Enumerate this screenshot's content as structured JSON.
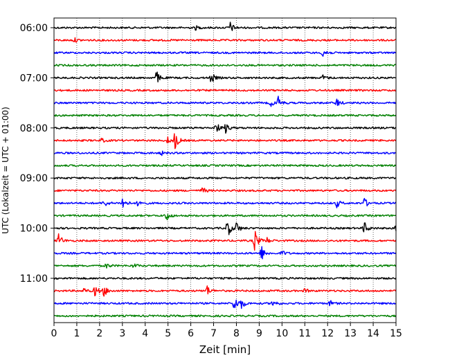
{
  "chart_data": {
    "type": "line",
    "title": "",
    "xlabel": "Zeit  [min]",
    "ylabel": "UTC (Lokalzeit = UTC + 01:00)",
    "xlim": [
      0,
      15
    ],
    "x_ticks": [
      0,
      1,
      2,
      3,
      4,
      5,
      6,
      7,
      8,
      9,
      10,
      11,
      12,
      13,
      14,
      15
    ],
    "x_tick_labels": [
      "0",
      "1",
      "2",
      "3",
      "4",
      "5",
      "6",
      "7",
      "8",
      "9",
      "10",
      "11",
      "12",
      "13",
      "14",
      "15"
    ],
    "y_tick_labels": [
      "06:00",
      "07:00",
      "08:00",
      "09:00",
      "10:00",
      "11:00"
    ],
    "y_tick_traces": [
      0,
      4,
      8,
      12,
      16,
      20
    ],
    "grid": "vertical-dotted",
    "trace_interval_minutes": 15,
    "color_cycle": [
      "#000000",
      "#ff0000",
      "#0000ff",
      "#008000"
    ],
    "traces": [
      {
        "start": "06:00",
        "events": [
          {
            "t": 7.7,
            "amp": 1.0
          },
          {
            "t": 6.2,
            "amp": 0.3
          }
        ]
      },
      {
        "start": "06:15",
        "events": [
          {
            "t": 0.9,
            "amp": 0.3
          }
        ]
      },
      {
        "start": "06:30",
        "events": [
          {
            "t": 11.8,
            "amp": 1.1
          }
        ]
      },
      {
        "start": "06:45",
        "events": []
      },
      {
        "start": "07:00",
        "events": [
          {
            "t": 4.5,
            "amp": 1.0
          },
          {
            "t": 6.9,
            "amp": 0.8
          },
          {
            "t": 11.8,
            "amp": 0.4
          }
        ]
      },
      {
        "start": "07:15",
        "events": []
      },
      {
        "start": "07:30",
        "events": [
          {
            "t": 9.8,
            "amp": 1.1
          },
          {
            "t": 9.5,
            "amp": 0.5
          },
          {
            "t": 12.4,
            "amp": 0.6
          }
        ]
      },
      {
        "start": "07:45",
        "events": []
      },
      {
        "start": "08:00",
        "events": [
          {
            "t": 7.1,
            "amp": 0.9
          },
          {
            "t": 7.5,
            "amp": 0.8
          }
        ]
      },
      {
        "start": "08:15",
        "events": [
          {
            "t": 5.3,
            "amp": 1.4
          },
          {
            "t": 5.0,
            "amp": 0.5
          },
          {
            "t": 2.1,
            "amp": 0.3
          }
        ]
      },
      {
        "start": "08:30",
        "events": [
          {
            "t": 4.7,
            "amp": 0.3
          }
        ]
      },
      {
        "start": "08:45",
        "events": []
      },
      {
        "start": "09:00",
        "events": []
      },
      {
        "start": "09:15",
        "events": [
          {
            "t": 6.5,
            "amp": 0.5
          }
        ]
      },
      {
        "start": "09:30",
        "events": [
          {
            "t": 3.0,
            "amp": 1.0
          },
          {
            "t": 2.2,
            "amp": 0.6
          },
          {
            "t": 3.7,
            "amp": 0.6
          },
          {
            "t": 12.4,
            "amp": 0.6
          },
          {
            "t": 13.6,
            "amp": 0.8
          }
        ]
      },
      {
        "start": "09:45",
        "events": [
          {
            "t": 4.9,
            "amp": 0.9
          }
        ]
      },
      {
        "start": "10:00",
        "events": [
          {
            "t": 7.6,
            "amp": 1.5
          },
          {
            "t": 8.0,
            "amp": 0.9
          },
          {
            "t": 13.6,
            "amp": 1.0
          },
          {
            "t": 15.0,
            "amp": 0.6
          }
        ]
      },
      {
        "start": "10:15",
        "events": [
          {
            "t": 0.2,
            "amp": 1.1
          },
          {
            "t": 8.8,
            "amp": 1.7
          },
          {
            "t": 9.3,
            "amp": 0.6
          }
        ]
      },
      {
        "start": "10:30",
        "events": [
          {
            "t": 9.1,
            "amp": 1.1
          },
          {
            "t": 10.0,
            "amp": 0.4
          }
        ]
      },
      {
        "start": "10:45",
        "events": [
          {
            "t": 2.3,
            "amp": 0.4
          },
          {
            "t": 3.5,
            "amp": 0.3
          }
        ]
      },
      {
        "start": "11:00",
        "events": []
      },
      {
        "start": "11:15",
        "events": [
          {
            "t": 1.8,
            "amp": 0.9
          },
          {
            "t": 2.2,
            "amp": 0.8
          },
          {
            "t": 1.3,
            "amp": 0.4
          },
          {
            "t": 6.7,
            "amp": 0.8
          },
          {
            "t": 11.0,
            "amp": 0.3
          }
        ]
      },
      {
        "start": "11:30",
        "events": [
          {
            "t": 7.9,
            "amp": 1.2
          },
          {
            "t": 8.2,
            "amp": 0.8
          },
          {
            "t": 9.6,
            "amp": 0.6
          },
          {
            "t": 12.1,
            "amp": 0.4
          }
        ]
      },
      {
        "start": "11:45",
        "events": []
      }
    ]
  }
}
